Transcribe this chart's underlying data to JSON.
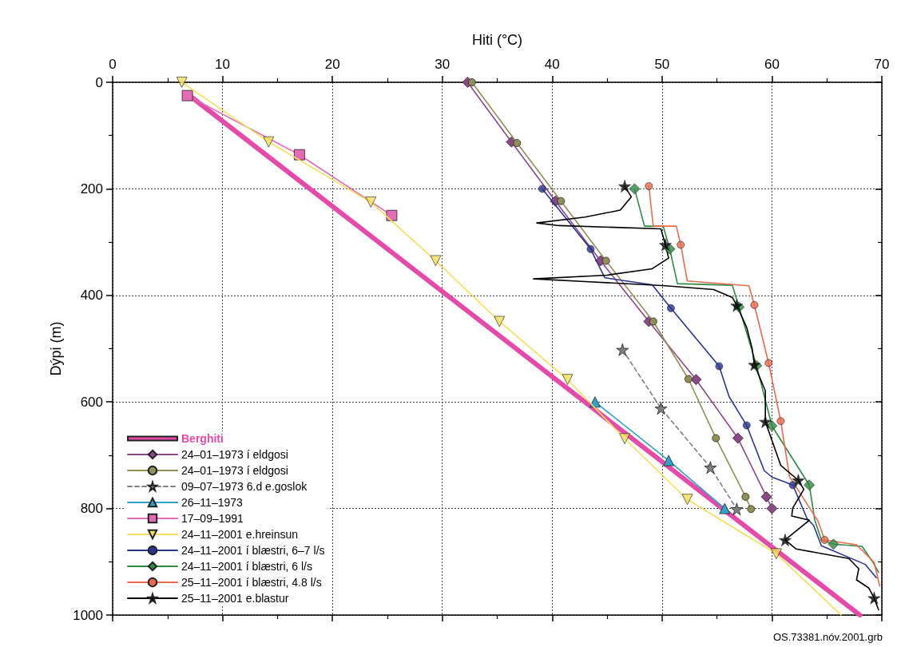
{
  "chart_data": {
    "type": "line",
    "xlabel": "Hiti (°C)",
    "ylabel": "Dýpi (m)",
    "xlim": [
      0,
      70
    ],
    "xticks": [
      0,
      {
        "value": 5,
        "label": null
      },
      10,
      {
        "value": 15,
        "label": null
      },
      20,
      {
        "value": 25,
        "label": null
      },
      30,
      {
        "value": 35,
        "label": null
      },
      40,
      {
        "value": 45,
        "label": null
      },
      50,
      {
        "value": 55,
        "label": null
      },
      60,
      {
        "value": 65,
        "label": null
      },
      70
    ],
    "ylim": [
      1000,
      0
    ],
    "yticks": [
      0,
      {
        "value": 100,
        "label": null
      },
      200,
      {
        "value": 300,
        "label": null
      },
      400,
      {
        "value": 500,
        "label": null
      },
      600,
      {
        "value": 700,
        "label": null
      },
      800,
      {
        "value": 900,
        "label": null
      },
      1000
    ],
    "grid": true,
    "legend": "bottom left",
    "annotations": [
      "OS.73381.nóv.2001.grb"
    ],
    "series": [
      {
        "name": "Berghiti",
        "color": "#e64aa8",
        "marker": "none",
        "x": [
          7,
          68
        ],
        "values": [
          25,
          1000
        ]
      },
      {
        "name": "24–01–1973 í eldgosi",
        "color": "#8a4a86",
        "marker": "diamond",
        "x": [
          32.3,
          36.3,
          40.3,
          44.4,
          48.8,
          53.1,
          56.9,
          59.5,
          60.0
        ],
        "values": [
          0,
          112,
          223,
          335,
          449,
          558,
          668,
          778,
          800
        ]
      },
      {
        "name": "24–01–1973 í eldgosi",
        "color": "#8f8f5a",
        "marker": "circle",
        "x": [
          32.7,
          36.8,
          40.8,
          44.9,
          49.2,
          52.4,
          54.9,
          57.6,
          58.1
        ],
        "values": [
          0,
          114,
          223,
          335,
          449,
          557,
          668,
          778,
          801
        ]
      },
      {
        "name": "09–07–1973 6.d e.goslok",
        "color": "#808080",
        "marker": "star",
        "line_style": "dashed",
        "x": [
          46.4,
          49.9,
          54.4,
          56.8
        ],
        "values": [
          502,
          612,
          723,
          801
        ]
      },
      {
        "name": "26–11–1973",
        "color": "#2fa3c8",
        "marker": "triangle",
        "x": [
          43.9,
          50.6,
          55.7
        ],
        "values": [
          600,
          710,
          800
        ]
      },
      {
        "name": "17–09–1991",
        "color": "#e36cb4",
        "marker": "square",
        "x": [
          6.8,
          17.0,
          25.4
        ],
        "values": [
          25,
          136,
          250
        ]
      },
      {
        "name": "24–11–2001 e.hreinsun",
        "color": "#f2e05a",
        "marker": "none",
        "x": [
          6.3,
          14.2,
          23.5,
          29.4,
          35.2,
          41.4,
          46.6,
          52.3,
          60.4,
          66.3
        ],
        "values": [
          0,
          112,
          225,
          335,
          449,
          558,
          669,
          783,
          885,
          1000
        ]
      },
      {
        "type": "scatter",
        "color": "#f2e05a",
        "marker": "triangle-down",
        "x": [
          6.3,
          14.2,
          23.5,
          29.4,
          35.2,
          41.4,
          46.6,
          52.3,
          60.4
        ],
        "values": [
          0,
          112,
          225,
          335,
          449,
          558,
          669,
          783,
          885
        ]
      },
      {
        "name": "24–11–2001 í blæstri, 6–7 l/s",
        "color": "#2b3590",
        "marker": "none",
        "x": [
          39.1,
          43.5,
          44.8,
          49.1,
          50.8,
          55.2,
          56.1,
          57.7,
          59.3,
          60.0,
          61.9,
          63.2,
          63.8,
          64.5,
          68.5,
          69.5
        ],
        "values": [
          200,
          313,
          367,
          380,
          424,
          533,
          590,
          644,
          729,
          741,
          756,
          819,
          832,
          870,
          905,
          930
        ]
      },
      {
        "type": "scatter",
        "color": "#2b3590",
        "marker": "circle",
        "x": [
          39.1,
          43.5,
          50.8,
          55.2,
          57.7,
          61.9
        ],
        "values": [
          200,
          313,
          424,
          533,
          644,
          756
        ]
      },
      {
        "name": "24–11–2001 í blæstri, 6 l/s",
        "color": "#2e8b45",
        "marker": "none",
        "x": [
          47.5,
          48.4,
          50.1,
          50.7,
          51.4,
          56.4,
          57.0,
          58.6,
          60.0,
          63.4,
          63.9,
          64.5,
          65.6,
          68.2,
          69.2,
          69.7
        ],
        "values": [
          200,
          270,
          270,
          313,
          378,
          381,
          422,
          532,
          645,
          756,
          822,
          859,
          867,
          871,
          901,
          920
        ]
      },
      {
        "type": "scatter",
        "color": "#2e8b45",
        "marker": "diamond",
        "x": [
          47.5,
          50.7,
          57.0,
          58.6,
          60.0,
          63.4,
          65.6
        ],
        "values": [
          200,
          313,
          422,
          532,
          645,
          756,
          867
        ]
      },
      {
        "name": "25–11–2001 í blæstri, 4.8 l/s",
        "color": "#ec6a4c",
        "marker": "none",
        "x": [
          48.8,
          49.2,
          51.3,
          51.7,
          52.3,
          57.9,
          58.4,
          59.7,
          60.8,
          61.6,
          64.2,
          64.8,
          67.7,
          69.3,
          69.8
        ],
        "values": [
          195,
          270,
          270,
          305,
          373,
          382,
          418,
          527,
          636,
          740,
          824,
          859,
          868,
          901,
          945
        ]
      },
      {
        "type": "scatter",
        "color": "#ec6a4c",
        "marker": "circle",
        "x": [
          48.8,
          51.7,
          58.4,
          59.7,
          60.8,
          64.8
        ],
        "values": [
          195,
          305,
          418,
          527,
          636,
          859
        ]
      },
      {
        "name": "25–11–2001 e.blastur",
        "color": "#000000",
        "marker": "none",
        "x": [
          46.6,
          47.2,
          46.2,
          43.0,
          38.6,
          40.6,
          49.9,
          50.3,
          50.6,
          49.1,
          45.0,
          38.3,
          43.0,
          50.3,
          54.7,
          56.4,
          56.8,
          57.7,
          58.2,
          58.4,
          59.4,
          59.4,
          60.8,
          62.4,
          62.9,
          61.9,
          61.8,
          63.4,
          61.2,
          62.2,
          67.0,
          67.9,
          67.7,
          68.8,
          69.3,
          69.7
        ],
        "values": [
          195,
          215,
          240,
          253,
          264,
          269,
          275,
          305,
          330,
          350,
          362,
          369,
          374,
          382,
          389,
          404,
          419,
          460,
          500,
          530,
          579,
          637,
          719,
          747,
          764,
          799,
          814,
          822,
          859,
          876,
          894,
          913,
          934,
          949,
          968,
          990
        ]
      },
      {
        "type": "scatter",
        "color": "#000000",
        "marker": "star",
        "x": [
          46.6,
          50.3,
          56.8,
          58.4,
          59.4,
          62.4,
          61.2,
          69.3
        ],
        "values": [
          195,
          305,
          419,
          530,
          637,
          747,
          859,
          968
        ]
      }
    ]
  }
}
